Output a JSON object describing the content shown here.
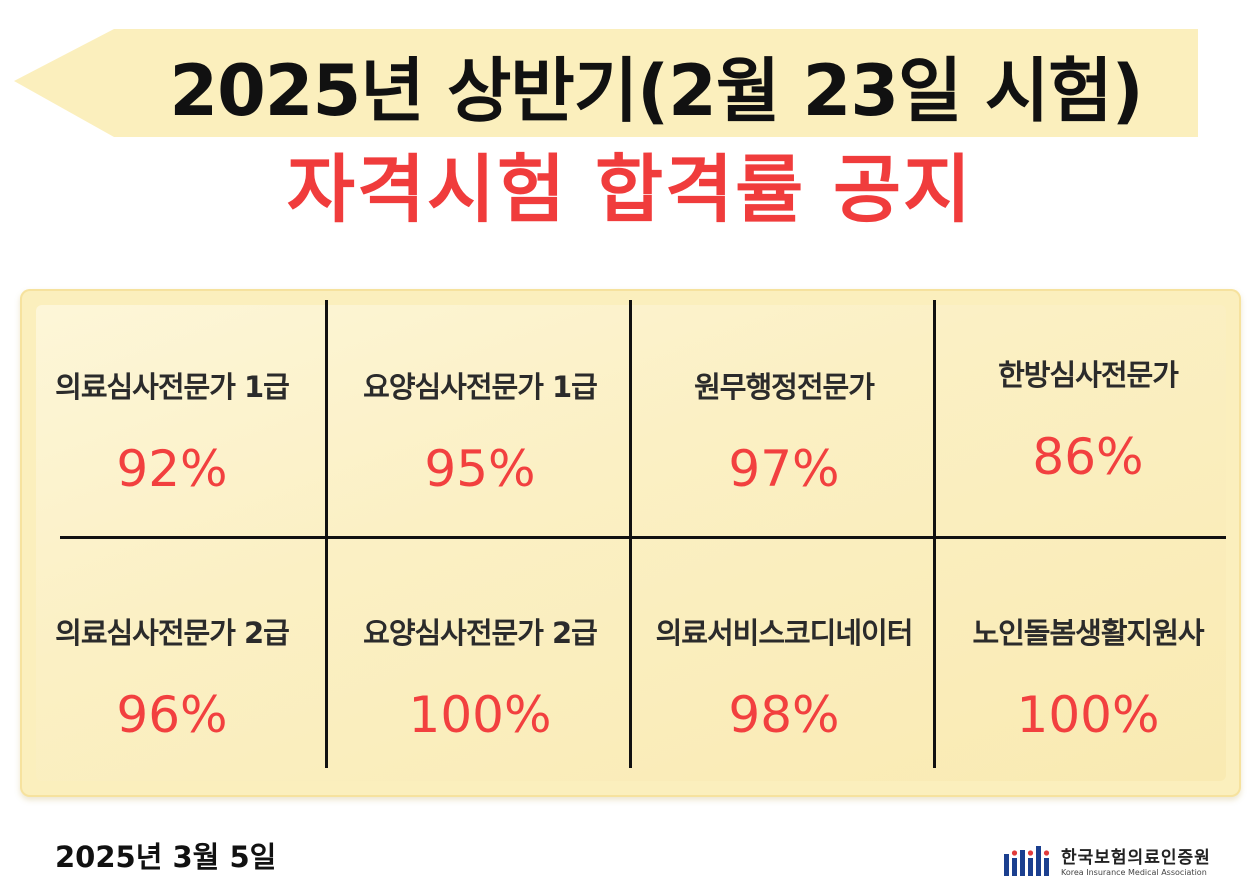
{
  "header": {
    "title": "2025년 상반기(2월 23일 시험)",
    "subtitle": "자격시험 합격률 공지"
  },
  "results": [
    {
      "name": "의료심사전문가 1급",
      "rate": "92%"
    },
    {
      "name": "요양심사전문가 1급",
      "rate": "95%"
    },
    {
      "name": "원무행정전문가",
      "rate": "97%"
    },
    {
      "name": "한방심사전문가",
      "rate": "86%"
    },
    {
      "name": "의료심사전문가 2급",
      "rate": "96%"
    },
    {
      "name": "요양심사전문가 2급",
      "rate": "100%"
    },
    {
      "name": "의료서비스코디네이터",
      "rate": "98%"
    },
    {
      "name": "노인돌봄생활지원사",
      "rate": "100%"
    }
  ],
  "footer": {
    "date": "2025년 3월 5일",
    "org_name": "한국보험의료인증원",
    "org_name_en": "Korea Insurance Medical Association"
  },
  "colors": {
    "accent_red": "#f03c3c",
    "banner_yellow": "#fbefbd"
  }
}
